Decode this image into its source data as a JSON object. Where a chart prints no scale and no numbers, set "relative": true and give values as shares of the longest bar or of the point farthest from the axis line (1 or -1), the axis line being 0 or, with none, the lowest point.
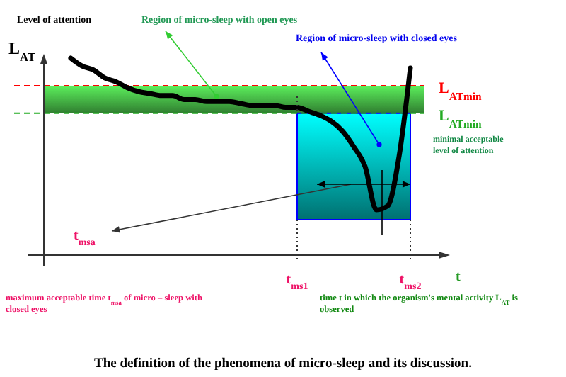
{
  "chart_data": {
    "type": "line",
    "relative": true,
    "title": "The definition of the phenomena of micro-sleep and its discussion.",
    "xlabel": "t",
    "ylabel": "L$_{AT}$",
    "categories": [
      null,
      null,
      null,
      null,
      null,
      null,
      null,
      null,
      null,
      null,
      null,
      null,
      null,
      null,
      null,
      null,
      null,
      null,
      null,
      null,
      "t$_{ms1}$",
      null,
      null,
      null,
      null,
      null,
      null,
      null,
      null,
      null,
      "t$_{ms2}$"
    ],
    "series": [
      {
        "color": "#000000",
        "values": [
          1.0,
          0.96,
          0.94,
          0.9,
          0.88,
          0.85,
          0.83,
          0.82,
          0.81,
          0.81,
          0.79,
          0.79,
          0.78,
          0.78,
          0.78,
          0.77,
          0.76,
          0.76,
          0.76,
          0.75,
          0.75,
          0.73,
          0.71,
          0.68,
          0.63,
          0.55,
          0.45,
          0.23,
          0.25,
          0.5,
          0.95
        ]
      }
    ],
    "bands": [
      {
        "axis": "y",
        "from": 0.72,
        "to": 0.86,
        "color": "#3c9c3c"
      }
    ],
    "ref_lines": [
      {
        "axis": "y",
        "value": 0.86,
        "label": "L$_{ATmin}$",
        "color": "#ff0000",
        "line_style": "dashed"
      },
      {
        "axis": "y",
        "value": 0.72,
        "label": "L$_{ATmin}$",
        "color": "#22aa22",
        "line_style": "dashed"
      }
    ],
    "annotations": [
      "Level of attention",
      "Region of micro-sleep with open eyes",
      "Region  of micro-sleep with closed eyes",
      "minimal acceptable level of attention",
      "t$_{msa}$",
      "maximum acceptable time t$_{msa}$ of micro – sleep with closed eyes",
      "time t in which the organism's mental activity L$_{AT}$ is observed"
    ]
  }
}
